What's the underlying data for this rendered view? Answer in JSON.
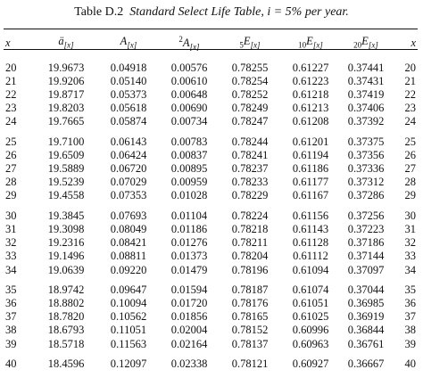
{
  "title": {
    "label": "Table D.2",
    "caption": "Standard Select Life Table, i = 5% per year."
  },
  "columns": {
    "x_left": "x",
    "a_sym": "ä",
    "a_sub": "[x]",
    "A_sym": "A",
    "A_sub": "[x]",
    "A2_sup": "2",
    "A2_sym": "A",
    "A2_sub": "[x]",
    "E5_pre": "5",
    "E5_sym": "E",
    "E5_sub": "[x]",
    "E10_pre": "10",
    "E10_sym": "E",
    "E10_sub": "[x]",
    "E20_pre": "20",
    "E20_sym": "E",
    "E20_sub": "[x]",
    "x_right": "x"
  },
  "groups": [
    [
      [
        "20",
        "19.9673",
        "0.04918",
        "0.00576",
        "0.78255",
        "0.61227",
        "0.37441",
        "20"
      ],
      [
        "21",
        "19.9206",
        "0.05140",
        "0.00610",
        "0.78254",
        "0.61223",
        "0.37431",
        "21"
      ],
      [
        "22",
        "19.8717",
        "0.05373",
        "0.00648",
        "0.78252",
        "0.61218",
        "0.37419",
        "22"
      ],
      [
        "23",
        "19.8203",
        "0.05618",
        "0.00690",
        "0.78249",
        "0.61213",
        "0.37406",
        "23"
      ],
      [
        "24",
        "19.7665",
        "0.05874",
        "0.00734",
        "0.78247",
        "0.61208",
        "0.37392",
        "24"
      ]
    ],
    [
      [
        "25",
        "19.7100",
        "0.06143",
        "0.00783",
        "0.78244",
        "0.61201",
        "0.37375",
        "25"
      ],
      [
        "26",
        "19.6509",
        "0.06424",
        "0.00837",
        "0.78241",
        "0.61194",
        "0.37356",
        "26"
      ],
      [
        "27",
        "19.5889",
        "0.06720",
        "0.00895",
        "0.78237",
        "0.61186",
        "0.37336",
        "27"
      ],
      [
        "28",
        "19.5239",
        "0.07029",
        "0.00959",
        "0.78233",
        "0.61177",
        "0.37312",
        "28"
      ],
      [
        "29",
        "19.4558",
        "0.07353",
        "0.01028",
        "0.78229",
        "0.61167",
        "0.37286",
        "29"
      ]
    ],
    [
      [
        "30",
        "19.3845",
        "0.07693",
        "0.01104",
        "0.78224",
        "0.61156",
        "0.37256",
        "30"
      ],
      [
        "31",
        "19.3098",
        "0.08049",
        "0.01186",
        "0.78218",
        "0.61143",
        "0.37223",
        "31"
      ],
      [
        "32",
        "19.2316",
        "0.08421",
        "0.01276",
        "0.78211",
        "0.61128",
        "0.37186",
        "32"
      ],
      [
        "33",
        "19.1496",
        "0.08811",
        "0.01373",
        "0.78204",
        "0.61112",
        "0.37144",
        "33"
      ],
      [
        "34",
        "19.0639",
        "0.09220",
        "0.01479",
        "0.78196",
        "0.61094",
        "0.37097",
        "34"
      ]
    ],
    [
      [
        "35",
        "18.9742",
        "0.09647",
        "0.01594",
        "0.78187",
        "0.61074",
        "0.37044",
        "35"
      ],
      [
        "36",
        "18.8802",
        "0.10094",
        "0.01720",
        "0.78176",
        "0.61051",
        "0.36985",
        "36"
      ],
      [
        "37",
        "18.7820",
        "0.10562",
        "0.01856",
        "0.78165",
        "0.61025",
        "0.36919",
        "37"
      ],
      [
        "38",
        "18.6793",
        "0.11051",
        "0.02004",
        "0.78152",
        "0.60996",
        "0.36844",
        "38"
      ],
      [
        "39",
        "18.5718",
        "0.11563",
        "0.02164",
        "0.78137",
        "0.60963",
        "0.36761",
        "39"
      ]
    ],
    [
      [
        "40",
        "18.4596",
        "0.12097",
        "0.02338",
        "0.78121",
        "0.60927",
        "0.36667",
        "40"
      ]
    ]
  ]
}
